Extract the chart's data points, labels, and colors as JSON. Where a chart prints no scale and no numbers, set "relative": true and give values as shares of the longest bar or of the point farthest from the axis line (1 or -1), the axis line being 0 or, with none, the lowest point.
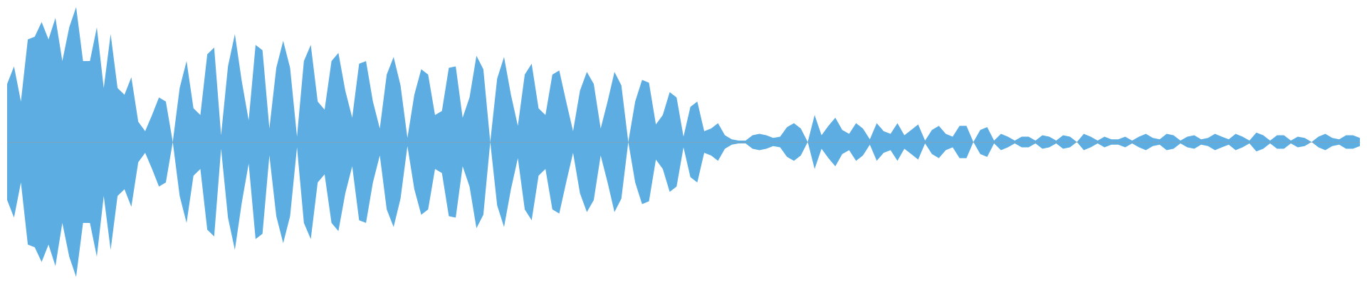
{
  "chart_data": {
    "type": "area",
    "relative": true,
    "categories": [
      null,
      null,
      null,
      null,
      null,
      null,
      null,
      null,
      null,
      null,
      null,
      null,
      null,
      null,
      null,
      null,
      null,
      null,
      null,
      null,
      null,
      null,
      null,
      null,
      null,
      null,
      null,
      null,
      null,
      null,
      null,
      null,
      null,
      null,
      null,
      null,
      null,
      null,
      null,
      null,
      null,
      null,
      null,
      null,
      null,
      null,
      null,
      null,
      null,
      null,
      null,
      null,
      null,
      null,
      null,
      null,
      null,
      null,
      null,
      null,
      null,
      null,
      null,
      null,
      null,
      null,
      null,
      null,
      null,
      null,
      null,
      null,
      null,
      null,
      null,
      null,
      null,
      null,
      null,
      null,
      null,
      null,
      null,
      null,
      null,
      null,
      null,
      null,
      null,
      null,
      null,
      null,
      null,
      null,
      null,
      null,
      null,
      null,
      null,
      null,
      null,
      null,
      null,
      null,
      null,
      null,
      null,
      null,
      null,
      null,
      null,
      null,
      null,
      null,
      null,
      null,
      null,
      null,
      null,
      null,
      null,
      null,
      null,
      null,
      null,
      null,
      null,
      null,
      null,
      null,
      null,
      null,
      null,
      null,
      null,
      null,
      null,
      null,
      null,
      null,
      null,
      null,
      null,
      null,
      null,
      null,
      null,
      null,
      null,
      null,
      null,
      null,
      null,
      null,
      null,
      null,
      null,
      null,
      null,
      null,
      null,
      null,
      null,
      null,
      null,
      null,
      null,
      null,
      null,
      null,
      null,
      null,
      null,
      null,
      null,
      null,
      null,
      null,
      null,
      null,
      null,
      null,
      null,
      null,
      null,
      null,
      null,
      null,
      null,
      null,
      null,
      null,
      null,
      null,
      null,
      null,
      null
    ],
    "series": [
      {
        "color": "#5dade2",
        "values": [
          0.43,
          0.56,
          0.3,
          0.76,
          0.78,
          0.89,
          0.76,
          0.92,
          0.6,
          0.85,
          1.0,
          0.6,
          0.6,
          0.85,
          0.4,
          0.8,
          0.4,
          0.35,
          0.48,
          0.15,
          0.08,
          0.2,
          0.33,
          0.3,
          0,
          0.4,
          0.6,
          0.25,
          0.2,
          0.65,
          0.7,
          0.05,
          0.56,
          0.8,
          0.45,
          0.16,
          0.72,
          0.68,
          0.1,
          0.55,
          0.75,
          0.55,
          0.04,
          0.6,
          0.72,
          0.3,
          0.24,
          0.6,
          0.66,
          0.38,
          0.18,
          0.58,
          0.6,
          0.3,
          0.1,
          0.5,
          0.63,
          0.42,
          0.03,
          0.35,
          0.54,
          0.5,
          0.2,
          0.23,
          0.55,
          0.56,
          0.18,
          0.33,
          0.64,
          0.54,
          0,
          0.47,
          0.63,
          0.35,
          0.12,
          0.5,
          0.58,
          0.25,
          0.2,
          0.5,
          0.53,
          0.3,
          0.08,
          0.38,
          0.52,
          0.43,
          0.1,
          0.3,
          0.52,
          0.42,
          0,
          0.3,
          0.46,
          0.44,
          0.13,
          0.2,
          0.37,
          0.33,
          0.04,
          0.26,
          0.3,
          0.08,
          0.1,
          0.14,
          0.05,
          0.02,
          0.01,
          0.01,
          0.05,
          0.06,
          0.05,
          0.03,
          0.04,
          0.11,
          0.14,
          0.1,
          0,
          0.2,
          0.05,
          0.12,
          0.18,
          0.09,
          0.06,
          0.14,
          0.1,
          0.02,
          0.14,
          0.08,
          0.06,
          0.14,
          0.05,
          0.09,
          0.13,
          0.01,
          0.09,
          0.12,
          0.06,
          0.04,
          0.12,
          0.12,
          0,
          0.09,
          0.11,
          0.01,
          0.06,
          0.04,
          0.01,
          0.04,
          0.04,
          0.01,
          0.05,
          0.04,
          0.01,
          0.05,
          0.04,
          0,
          0.06,
          0.04,
          0.01,
          0.04,
          0.02,
          0.02,
          0.04,
          0.01,
          0.04,
          0.06,
          0.03,
          0.02,
          0.06,
          0.05,
          0.01,
          0.04,
          0.05,
          0.02,
          0.03,
          0.06,
          0.04,
          0.02,
          0.06,
          0.04,
          0.01,
          0.07,
          0.05,
          0.01,
          0.05,
          0.05,
          0.01,
          0.04,
          0.03,
          0,
          0.04,
          0.06,
          0.03,
          0.02,
          0.05,
          0.05,
          0.03
        ]
      },
      {
        "color": "#5caee2",
        "values": [
          -0.43,
          -0.56,
          -0.3,
          -0.76,
          -0.78,
          -0.89,
          -0.76,
          -0.92,
          -0.6,
          -0.85,
          -1.0,
          -0.6,
          -0.6,
          -0.85,
          -0.4,
          -0.8,
          -0.4,
          -0.35,
          -0.48,
          -0.15,
          -0.08,
          -0.2,
          -0.33,
          -0.3,
          0,
          -0.4,
          -0.6,
          -0.25,
          -0.2,
          -0.65,
          -0.7,
          -0.05,
          -0.56,
          -0.8,
          -0.45,
          -0.16,
          -0.72,
          -0.68,
          -0.1,
          -0.55,
          -0.75,
          -0.55,
          -0.04,
          -0.6,
          -0.72,
          -0.3,
          -0.24,
          -0.6,
          -0.66,
          -0.38,
          -0.18,
          -0.58,
          -0.6,
          -0.3,
          -0.1,
          -0.5,
          -0.63,
          -0.42,
          -0.03,
          -0.35,
          -0.54,
          -0.5,
          -0.2,
          -0.23,
          -0.55,
          -0.56,
          -0.18,
          -0.33,
          -0.64,
          -0.54,
          0,
          -0.47,
          -0.63,
          -0.35,
          -0.12,
          -0.5,
          -0.58,
          -0.25,
          -0.2,
          -0.5,
          -0.53,
          -0.3,
          -0.08,
          -0.38,
          -0.52,
          -0.43,
          -0.1,
          -0.3,
          -0.52,
          -0.42,
          0,
          -0.3,
          -0.46,
          -0.44,
          -0.13,
          -0.2,
          -0.37,
          -0.33,
          -0.04,
          -0.26,
          -0.3,
          -0.08,
          -0.1,
          -0.14,
          -0.05,
          -0.02,
          -0.01,
          -0.01,
          -0.05,
          -0.06,
          -0.05,
          -0.03,
          -0.04,
          -0.11,
          -0.14,
          -0.1,
          0,
          -0.2,
          -0.05,
          -0.12,
          -0.18,
          -0.09,
          -0.06,
          -0.14,
          -0.1,
          -0.02,
          -0.14,
          -0.08,
          -0.06,
          -0.14,
          -0.05,
          -0.09,
          -0.13,
          -0.01,
          -0.09,
          -0.12,
          -0.06,
          -0.04,
          -0.12,
          -0.12,
          0,
          -0.09,
          -0.11,
          -0.01,
          -0.06,
          -0.04,
          -0.01,
          -0.04,
          -0.04,
          -0.01,
          -0.05,
          -0.04,
          -0.01,
          -0.05,
          -0.04,
          0,
          -0.06,
          -0.04,
          -0.01,
          -0.04,
          -0.02,
          -0.02,
          -0.04,
          -0.01,
          -0.04,
          -0.06,
          -0.03,
          -0.02,
          -0.06,
          -0.05,
          -0.01,
          -0.04,
          -0.05,
          -0.02,
          -0.03,
          -0.06,
          -0.04,
          -0.02,
          -0.06,
          -0.04,
          -0.01,
          -0.07,
          -0.05,
          -0.01,
          -0.05,
          -0.05,
          -0.01,
          -0.04,
          -0.03,
          0,
          -0.04,
          -0.06,
          -0.03,
          -0.02,
          -0.05,
          -0.05,
          -0.03
        ]
      }
    ]
  }
}
